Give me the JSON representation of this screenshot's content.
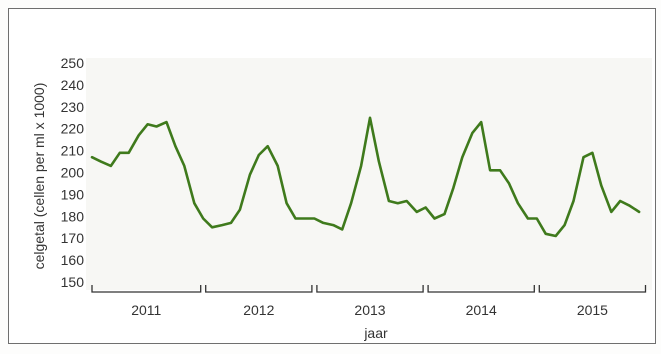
{
  "chart_data": {
    "type": "line",
    "ylabel": "celgetal (cellen per ml x 1000)",
    "xlabel": "jaar",
    "ylim": [
      150,
      250
    ],
    "yticks": [
      150,
      160,
      170,
      180,
      190,
      200,
      210,
      220,
      230,
      240,
      250
    ],
    "xlim": [
      2011,
      2016
    ],
    "year_labels": [
      "2011",
      "2012",
      "2013",
      "2014",
      "2015"
    ],
    "grid": false,
    "line_color": "#3f7a1c",
    "series": [
      {
        "x": [
          2011.0,
          2011.08,
          2011.17,
          2011.25,
          2011.33,
          2011.42,
          2011.5,
          2011.58,
          2011.67,
          2011.75,
          2011.83,
          2011.92,
          2012.0,
          2012.08,
          2012.17,
          2012.25,
          2012.33,
          2012.42,
          2012.5,
          2012.58,
          2012.67,
          2012.75,
          2012.83,
          2012.92,
          2013.0,
          2013.08,
          2013.17,
          2013.25,
          2013.33,
          2013.42,
          2013.5,
          2013.58,
          2013.67,
          2013.75,
          2013.83,
          2013.92,
          2014.0,
          2014.08,
          2014.17,
          2014.25,
          2014.33,
          2014.42,
          2014.5,
          2014.58,
          2014.67,
          2014.75,
          2014.83,
          2014.92,
          2015.0,
          2015.08,
          2015.17,
          2015.25,
          2015.33,
          2015.42,
          2015.5,
          2015.58,
          2015.67,
          2015.75,
          2015.83,
          2015.92
        ],
        "y": [
          207,
          205,
          203,
          209,
          209,
          217,
          222,
          221,
          223,
          212,
          203,
          186,
          179,
          175,
          176,
          177,
          183,
          199,
          208,
          212,
          203,
          186,
          179,
          179,
          179,
          177,
          176,
          174,
          186,
          203,
          225,
          205,
          187,
          186,
          187,
          182,
          184,
          179,
          181,
          193,
          207,
          218,
          223,
          201,
          201,
          195,
          186,
          179,
          179,
          172,
          171,
          176,
          187,
          207,
          209,
          194,
          182,
          187,
          185,
          182
        ]
      }
    ]
  }
}
